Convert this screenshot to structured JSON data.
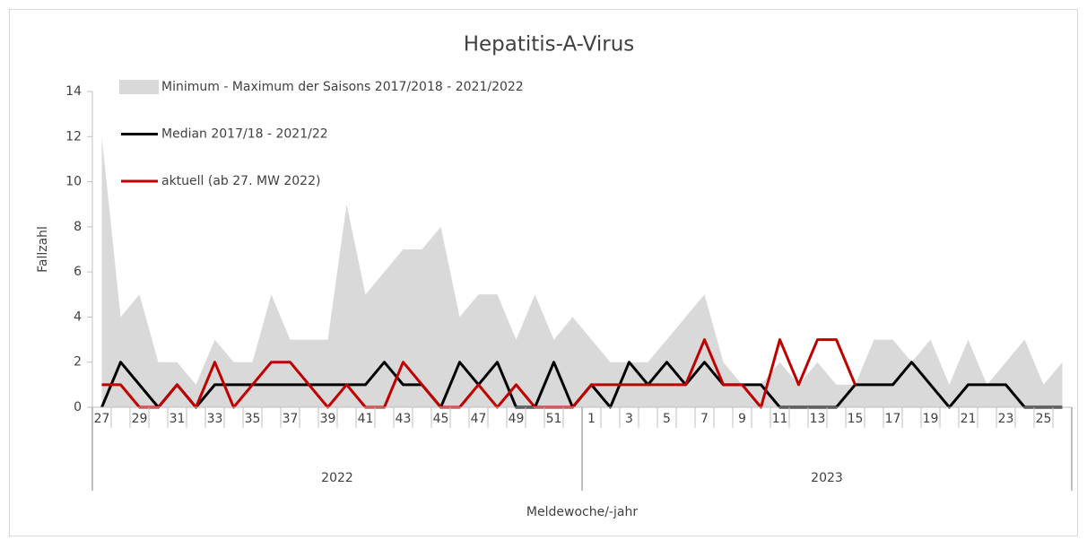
{
  "chart_data": {
    "type": "line",
    "title": "Hepatitis-A-Virus",
    "y_label": "Fallzahl",
    "x_label": "Meldewoche/-jahr",
    "groups": [
      "2022",
      "2023"
    ],
    "categories": [
      "27",
      null,
      "29",
      null,
      "31",
      null,
      "33",
      null,
      "35",
      null,
      "37",
      null,
      "39",
      null,
      "41",
      null,
      "43",
      null,
      "45",
      null,
      "47",
      null,
      "49",
      null,
      "51",
      null,
      "1",
      null,
      "3",
      null,
      "5",
      null,
      "7",
      null,
      "9",
      null,
      "11",
      null,
      "13",
      null,
      "15",
      null,
      "17",
      null,
      "19",
      null,
      "21",
      null,
      "23",
      null,
      "25",
      null
    ],
    "ylim": [
      0,
      14
    ],
    "yticks": [
      0,
      2,
      4,
      6,
      8,
      10,
      12,
      14
    ],
    "grid": false,
    "series": [
      {
        "name": "Minimum - Maximum der Saisons 2017/2018 - 2021/2022",
        "type": "area",
        "color": "#d9d9d9",
        "values": [
          12,
          4,
          5,
          2,
          2,
          1,
          3,
          2,
          2,
          5,
          3,
          3,
          3,
          9,
          5,
          6,
          7,
          7,
          8,
          4,
          5,
          5,
          3,
          5,
          3,
          4,
          3,
          2,
          2,
          2,
          3,
          4,
          5,
          2,
          1,
          1,
          2,
          1,
          2,
          1,
          1,
          3,
          3,
          2,
          3,
          1,
          3,
          1,
          2,
          3,
          1,
          2
        ]
      },
      {
        "name": "Median 2017/18 - 2021/22",
        "type": "line",
        "color": "#000000",
        "values": [
          0,
          2,
          1,
          0,
          1,
          0,
          1,
          1,
          1,
          1,
          1,
          1,
          1,
          1,
          1,
          2,
          1,
          1,
          0,
          2,
          1,
          2,
          0,
          0,
          2,
          0,
          1,
          0,
          2,
          1,
          2,
          1,
          2,
          1,
          1,
          1,
          0,
          0,
          0,
          0,
          1,
          1,
          1,
          2,
          1,
          0,
          1,
          1,
          1,
          0,
          0,
          0
        ]
      },
      {
        "name": "aktuell (ab 27. MW 2022)",
        "type": "line",
        "color": "#c00000",
        "values": [
          1,
          1,
          0,
          0,
          1,
          0,
          2,
          0,
          1,
          2,
          2,
          1,
          0,
          1,
          0,
          0,
          2,
          1,
          0,
          0,
          1,
          0,
          1,
          0,
          0,
          0,
          1,
          1,
          1,
          1,
          1,
          1,
          3,
          1,
          1,
          0,
          3,
          1,
          3,
          3,
          1,
          null,
          null,
          null,
          null,
          null,
          null,
          null,
          null,
          null,
          null,
          null
        ]
      }
    ]
  }
}
